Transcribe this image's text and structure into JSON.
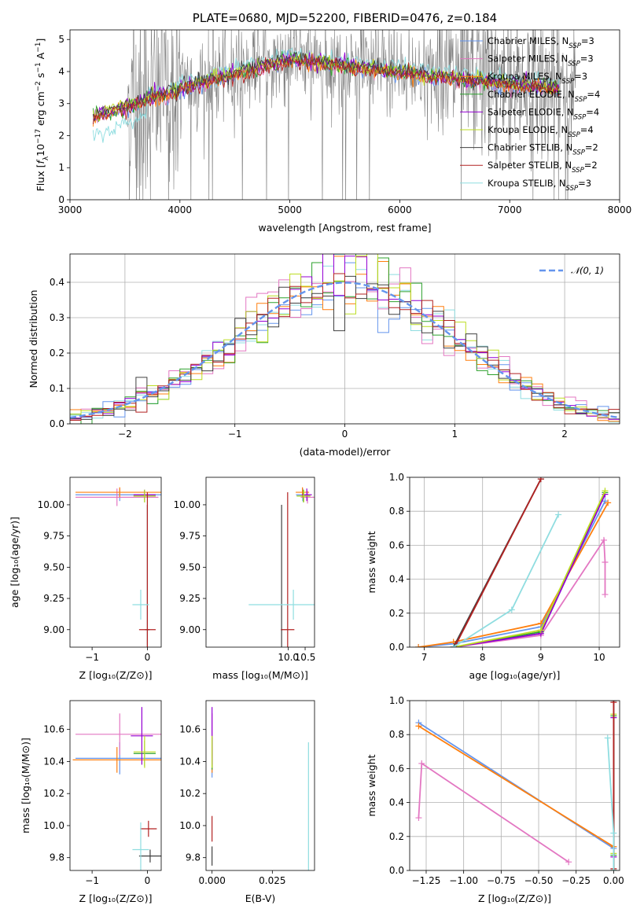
{
  "chart_data": [
    {
      "id": "spectrum",
      "type": "line",
      "title": "PLATE=0680, MJD=52200, FIBERID=0476, z=0.184",
      "xlabel": "wavelength [Angstrom, rest frame]",
      "ylabel_parts": [
        "Flux [",
        "f",
        "λ",
        "10",
        "−17",
        " erg cm",
        "−2",
        " s",
        "−1",
        " A",
        "−1",
        "]"
      ],
      "xlim": [
        3000,
        8000
      ],
      "ylim": [
        0,
        5.3
      ],
      "xticks": [
        3000,
        4000,
        5000,
        6000,
        7000,
        8000
      ],
      "yticks": [
        0,
        1,
        2,
        3,
        4,
        5
      ],
      "legend_position": "top-right",
      "series": [
        {
          "label": "Chabrier MILES, N",
          "sub": "SSP",
          "suffix": "=3",
          "color": "#6495ED"
        },
        {
          "label": "Salpeter MILES, N",
          "sub": "SSP",
          "suffix": "=3",
          "color": "#E377C2"
        },
        {
          "label": "Kroupa MILES, N",
          "sub": "SSP",
          "suffix": "=3",
          "color": "#FF7F0E"
        },
        {
          "label": "Chabrier ELODIE, N",
          "sub": "SSP",
          "suffix": "=4",
          "color": "#2CA02C"
        },
        {
          "label": "Salpeter ELODIE, N",
          "sub": "SSP",
          "suffix": "=4",
          "color": "#9400D3"
        },
        {
          "label": "Kroupa ELODIE, N",
          "sub": "SSP",
          "suffix": "=4",
          "color": "#BCDD22"
        },
        {
          "label": "Chabrier STELIB, N",
          "sub": "SSP",
          "suffix": "=2",
          "color": "#404040"
        },
        {
          "label": "Salpeter STELIB, N",
          "sub": "SSP",
          "suffix": "=2",
          "color": "#B22222"
        },
        {
          "label": "Kroupa STELIB, N",
          "sub": "SSP",
          "suffix": "=3",
          "color": "#8FDDE0"
        }
      ]
    },
    {
      "id": "residuals",
      "type": "histogram",
      "xlabel": "(data-model)/error",
      "ylabel": "Normed distribution",
      "xlim": [
        -2.5,
        2.5
      ],
      "ylim": [
        0,
        0.48
      ],
      "xticks": [
        -2,
        -1,
        0,
        1,
        2
      ],
      "yticks": [
        0.0,
        0.1,
        0.2,
        0.3,
        0.4
      ],
      "grid": true,
      "legend_position": "top-right",
      "legend": "𝒩(0, 1)",
      "gaussian_color": "#6495ED"
    },
    {
      "id": "age_vs_z",
      "type": "errorbar",
      "xlabel": "Z [log₁₀(Z/Z⊙)]",
      "ylabel": "age  [log₁₀(age/yr)]",
      "xlim": [
        -1.4,
        0.25
      ],
      "ylim": [
        8.86,
        10.22
      ],
      "xticks": [
        -1,
        0
      ],
      "yticks": [
        9.0,
        9.25,
        9.5,
        9.75,
        10.0
      ],
      "points": [
        {
          "x": -0.5,
          "y": 10.08,
          "xerr": 0.8,
          "yerr": 0.05,
          "color": "#6495ED"
        },
        {
          "x": -0.55,
          "y": 10.06,
          "xerr": 0.75,
          "yerr": 0.07,
          "color": "#E377C2"
        },
        {
          "x": -0.5,
          "y": 10.1,
          "xerr": 0.8,
          "yerr": 0.04,
          "color": "#FF7F0E"
        },
        {
          "x": -0.05,
          "y": 10.07,
          "xerr": 0.2,
          "yerr": 0.05,
          "color": "#2CA02C"
        },
        {
          "x": -0.05,
          "y": 10.08,
          "xerr": 0.2,
          "yerr": 0.04,
          "color": "#9400D3"
        },
        {
          "x": -0.05,
          "y": 10.07,
          "xerr": 0.2,
          "yerr": 0.05,
          "color": "#BCDD22"
        },
        {
          "x": 0.0,
          "y": 9.0,
          "xerr": 0.04,
          "yerr": 1.0,
          "color": "#404040"
        },
        {
          "x": 0.0,
          "y": 9.0,
          "xerr": 0.15,
          "yerr": 1.1,
          "color": "#B22222"
        },
        {
          "x": -0.12,
          "y": 9.2,
          "xerr": 0.15,
          "yerr": 0.12,
          "color": "#8FDDE0"
        }
      ]
    },
    {
      "id": "age_vs_mass",
      "type": "errorbar",
      "xlabel": "mass [log₁₀(M/M⊙)]",
      "ylabel": "",
      "xlim": [
        7.55,
        10.78
      ],
      "ylim": [
        8.86,
        10.22
      ],
      "xticks": [
        10.0,
        10.5
      ],
      "yticks": [
        9.0,
        9.25,
        9.5,
        9.75,
        10.0
      ],
      "points": [
        {
          "x": 10.43,
          "y": 10.08,
          "xerr": 0.2,
          "yerr": 0.05,
          "color": "#6495ED"
        },
        {
          "x": 10.57,
          "y": 10.06,
          "xerr": 0.2,
          "yerr": 0.05,
          "color": "#E377C2"
        },
        {
          "x": 10.42,
          "y": 10.1,
          "xerr": 0.2,
          "yerr": 0.04,
          "color": "#FF7F0E"
        },
        {
          "x": 10.45,
          "y": 10.07,
          "xerr": 0.2,
          "yerr": 0.05,
          "color": "#2CA02C"
        },
        {
          "x": 10.55,
          "y": 10.08,
          "xerr": 0.15,
          "yerr": 0.05,
          "color": "#9400D3"
        },
        {
          "x": 10.46,
          "y": 10.07,
          "xerr": 0.2,
          "yerr": 0.05,
          "color": "#BCDD22"
        },
        {
          "x": 9.8,
          "y": 9.0,
          "xerr": 0.02,
          "yerr": 1.0,
          "color": "#404040"
        },
        {
          "x": 9.98,
          "y": 9.0,
          "xerr": 0.2,
          "yerr": 1.1,
          "color": "#B22222"
        },
        {
          "x": 10.15,
          "y": 9.2,
          "xerr": 1.33,
          "yerr": 0.12,
          "color": "#8FDDE0"
        }
      ]
    },
    {
      "id": "massweight_vs_age",
      "type": "line",
      "xlabel": "age  [log₁₀(age/yr)]",
      "ylabel": "mass weight",
      "xlim": [
        6.75,
        10.35
      ],
      "ylim": [
        0,
        1
      ],
      "xticks": [
        7,
        8,
        9,
        10
      ],
      "yticks": [
        0.0,
        0.2,
        0.4,
        0.6,
        0.8,
        1.0
      ],
      "grid": true,
      "series": [
        {
          "x": [
            6.9,
            7.5,
            9.0,
            10.1
          ],
          "y": [
            0.0,
            0.02,
            0.12,
            0.86
          ],
          "color": "#6495ED"
        },
        {
          "x": [
            7.5,
            9.0,
            10.08,
            10.1,
            10.1
          ],
          "y": [
            0.0,
            0.07,
            0.63,
            0.5,
            0.31
          ],
          "color": "#E377C2"
        },
        {
          "x": [
            6.9,
            7.5,
            9.0,
            10.15
          ],
          "y": [
            0.0,
            0.03,
            0.14,
            0.85
          ],
          "color": "#FF7F0E"
        },
        {
          "x": [
            7.5,
            9.0,
            10.1
          ],
          "y": [
            0.0,
            0.09,
            0.91
          ],
          "color": "#2CA02C"
        },
        {
          "x": [
            7.5,
            9.0,
            10.1
          ],
          "y": [
            0.0,
            0.08,
            0.9
          ],
          "color": "#9400D3"
        },
        {
          "x": [
            7.5,
            9.0,
            10.1
          ],
          "y": [
            0.0,
            0.1,
            0.92
          ],
          "color": "#BCDD22"
        },
        {
          "x": [
            7.5,
            9.0
          ],
          "y": [
            0.0,
            0.99
          ],
          "color": "#404040"
        },
        {
          "x": [
            7.55,
            9.0
          ],
          "y": [
            0.02,
            0.99
          ],
          "color": "#B22222"
        },
        {
          "x": [
            7.5,
            8.5,
            9.3
          ],
          "y": [
            0.0,
            0.22,
            0.78
          ],
          "color": "#8FDDE0"
        }
      ]
    },
    {
      "id": "mass_vs_z",
      "type": "errorbar",
      "xlabel": "Z [log₁₀(Z/Z⊙)]",
      "ylabel": "mass [log₁₀(M/M⊙)]",
      "xlim": [
        -1.4,
        0.25
      ],
      "ylim": [
        9.72,
        10.78
      ],
      "xticks": [
        -1,
        0
      ],
      "yticks": [
        9.8,
        10.0,
        10.2,
        10.4,
        10.6
      ],
      "points": [
        {
          "x": -0.5,
          "y": 10.42,
          "xerr": 0.8,
          "yerr": 0.1,
          "color": "#6495ED"
        },
        {
          "x": -0.5,
          "y": 10.57,
          "xerr": 0.8,
          "yerr": 0.13,
          "color": "#E377C2"
        },
        {
          "x": -0.55,
          "y": 10.41,
          "xerr": 0.8,
          "yerr": 0.08,
          "color": "#FF7F0E"
        },
        {
          "x": -0.05,
          "y": 10.45,
          "xerr": 0.2,
          "yerr": 0.08,
          "color": "#2CA02C"
        },
        {
          "x": -0.1,
          "y": 10.56,
          "xerr": 0.2,
          "yerr": 0.18,
          "color": "#9400D3"
        },
        {
          "x": -0.05,
          "y": 10.46,
          "xerr": 0.2,
          "yerr": 0.1,
          "color": "#BCDD22"
        },
        {
          "x": 0.05,
          "y": 9.81,
          "xerr": 0.2,
          "yerr": 0.04,
          "color": "#404040"
        },
        {
          "x": 0.02,
          "y": 9.98,
          "xerr": 0.15,
          "yerr": 0.05,
          "color": "#B22222"
        },
        {
          "x": -0.12,
          "y": 9.85,
          "xerr": 0.15,
          "yerr": 0.17,
          "color": "#8FDDE0"
        }
      ]
    },
    {
      "id": "mass_vs_ebv",
      "type": "errorbar",
      "xlabel": "E(B-V)",
      "ylabel": "",
      "xlim": [
        -0.0025,
        0.0425
      ],
      "ylim": [
        9.72,
        10.78
      ],
      "xticks": [
        0.0,
        0.025
      ],
      "tick_labels": [
        "0.000",
        "0.025"
      ],
      "yticks": [
        9.8,
        10.0,
        10.2,
        10.4,
        10.6
      ],
      "points": [
        {
          "x": 0.0,
          "y": 10.42,
          "yerr": 0.12,
          "color": "#6495ED"
        },
        {
          "x": 0.0,
          "y": 10.57,
          "yerr": 0.13,
          "color": "#E377C2"
        },
        {
          "x": 0.0,
          "y": 10.41,
          "yerr": 0.08,
          "color": "#FF7F0E"
        },
        {
          "x": 0.0,
          "y": 10.45,
          "yerr": 0.1,
          "color": "#2CA02C"
        },
        {
          "x": 0.0,
          "y": 10.56,
          "yerr": 0.18,
          "color": "#9400D3"
        },
        {
          "x": 0.0,
          "y": 10.46,
          "yerr": 0.1,
          "color": "#BCDD22"
        },
        {
          "x": 0.0,
          "y": 9.81,
          "yerr": 0.06,
          "color": "#404040"
        },
        {
          "x": 0.0,
          "y": 9.98,
          "yerr": 0.08,
          "color": "#B22222"
        },
        {
          "x": 0.04,
          "y": 10.1,
          "yerr": 0.42,
          "color": "#8FDDE0"
        }
      ]
    },
    {
      "id": "massweight_vs_z",
      "type": "line",
      "xlabel": "Z [log₁₀(Z/Z⊙)]",
      "ylabel": "mass weight",
      "xlim": [
        -1.36,
        0.04
      ],
      "ylim": [
        0,
        1
      ],
      "xticks": [
        -1.25,
        -1.0,
        -0.75,
        -0.5,
        -0.25,
        0.0
      ],
      "tick_labels": [
        "−1.25",
        "−1.00",
        "−0.75",
        "−0.50",
        "−0.25",
        "0.00"
      ],
      "yticks": [
        0.0,
        0.2,
        0.4,
        0.6,
        0.8,
        1.0
      ],
      "grid": true,
      "series": [
        {
          "x": [
            -1.3,
            0.0,
            0.0
          ],
          "y": [
            0.87,
            0.13,
            0.0
          ],
          "color": "#6495ED"
        },
        {
          "x": [
            -1.3,
            -1.28,
            -0.3
          ],
          "y": [
            0.31,
            0.63,
            0.05
          ],
          "color": "#E377C2"
        },
        {
          "x": [
            -1.3,
            0.0,
            0.0
          ],
          "y": [
            0.85,
            0.14,
            0.0
          ],
          "color": "#FF7F0E"
        },
        {
          "x": [
            0.0,
            0.0,
            0.0
          ],
          "y": [
            0.0,
            0.09,
            0.91
          ],
          "color": "#2CA02C"
        },
        {
          "x": [
            0.0,
            0.0
          ],
          "y": [
            0.08,
            0.9
          ],
          "color": "#9400D3"
        },
        {
          "x": [
            0.0,
            0.0
          ],
          "y": [
            0.1,
            0.92
          ],
          "color": "#BCDD22"
        },
        {
          "x": [
            0.0,
            0.0
          ],
          "y": [
            0.0,
            1.0
          ],
          "color": "#404040"
        },
        {
          "x": [
            0.0,
            0.0
          ],
          "y": [
            0.01,
            0.99
          ],
          "color": "#B22222"
        },
        {
          "x": [
            -0.04,
            0.0,
            0.0
          ],
          "y": [
            0.78,
            0.22,
            0.0
          ],
          "color": "#8FDDE0"
        }
      ]
    }
  ]
}
